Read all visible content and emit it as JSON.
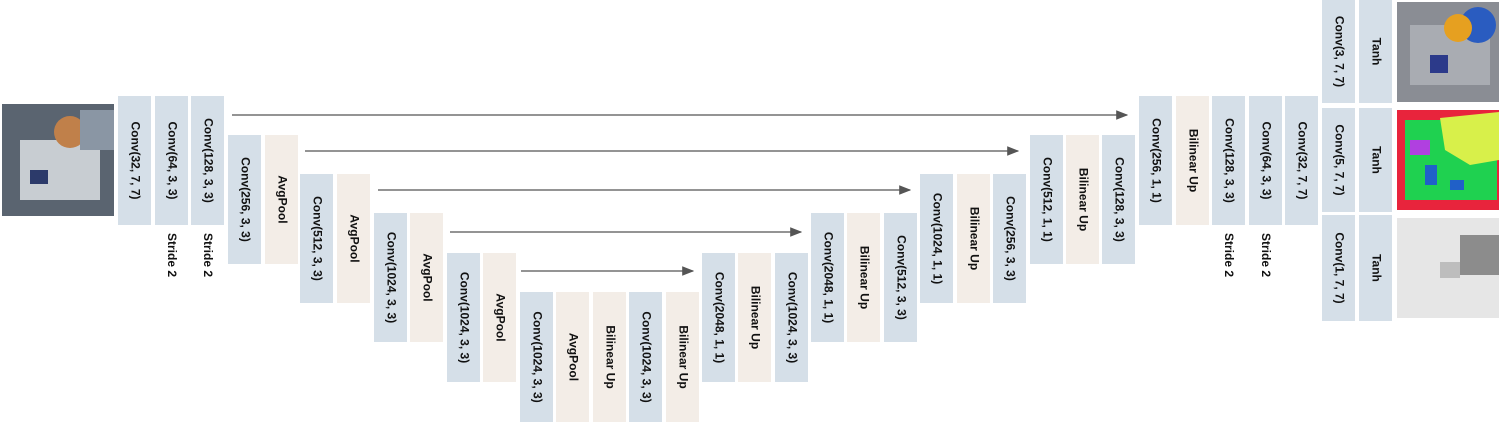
{
  "blocks": [
    {
      "label": "Conv(32, 7, 7)"
    },
    {
      "label": "Conv(64, 3, 3)"
    },
    {
      "label": "Conv(128, 3, 3)"
    },
    {
      "label": "Conv(256, 3, 3)"
    },
    {
      "label": "AvgPool"
    },
    {
      "label": "Conv(512, 3, 3)"
    },
    {
      "label": "AvgPool"
    },
    {
      "label": "Conv(1024, 3, 3)"
    },
    {
      "label": "AvgPool"
    },
    {
      "label": "Conv(1024, 3, 3)"
    },
    {
      "label": "AvgPool"
    },
    {
      "label": "Conv(1024, 3, 3)"
    },
    {
      "label": "AvgPool"
    },
    {
      "label": "Bilinear Up"
    },
    {
      "label": "Conv(1024, 3, 3)"
    },
    {
      "label": "Bilinear Up"
    },
    {
      "label": "Conv(2048, 1, 1)"
    },
    {
      "label": "Bilinear Up"
    },
    {
      "label": "Conv(1024, 3, 3)"
    },
    {
      "label": "Conv(2048, 1, 1)"
    },
    {
      "label": "Bilinear Up"
    },
    {
      "label": "Conv(512, 3, 3)"
    },
    {
      "label": "Conv(1024, 1, 1)"
    },
    {
      "label": "Bilinear Up"
    },
    {
      "label": "Conv(256, 3, 3)"
    },
    {
      "label": "Conv(512, 1, 1)"
    },
    {
      "label": "Bilinear Up"
    },
    {
      "label": "Conv(128, 3, 3)"
    },
    {
      "label": "Conv(256, 1, 1)"
    },
    {
      "label": "Bilinear Up"
    },
    {
      "label": "Conv(128, 3, 3)"
    },
    {
      "label": "Conv(64, 3, 3)"
    },
    {
      "label": "Conv(32, 7, 7)"
    },
    {
      "label": "Conv(3, 7, 7)"
    },
    {
      "label": "Tanh"
    },
    {
      "label": "Conv(5, 7, 7)"
    },
    {
      "label": "Tanh"
    },
    {
      "label": "Conv(1, 7, 7)"
    },
    {
      "label": "Tanh"
    }
  ],
  "notes": [
    "Stride 2",
    "Stride 2",
    "Stride 2",
    "Stride 2"
  ]
}
